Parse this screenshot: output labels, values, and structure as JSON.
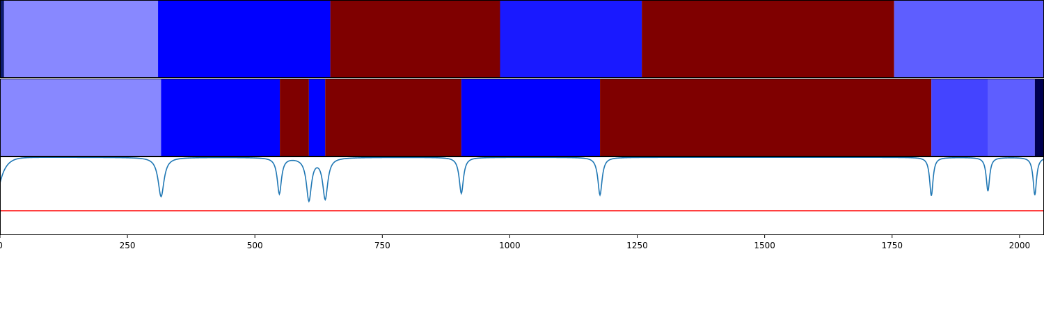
{
  "chart_data": {
    "type": "segmentation-timeline",
    "xlim": [
      0,
      2048
    ],
    "x_ticks": [
      0,
      250,
      500,
      750,
      1000,
      1250,
      1500,
      1750,
      2000
    ],
    "x_tick_labels": [
      "0",
      "250",
      "500",
      "750",
      "1000",
      "1250",
      "1500",
      "1750",
      "2000"
    ],
    "colors": {
      "navy": "#0d1a6e",
      "light_blue": "#8888ff",
      "blue": "#0000ff",
      "dark_red": "#7f0000",
      "blue2": "#1919ff",
      "mid_blue": "#5e5eff",
      "indigo": "#4444ff",
      "darkest_navy": "#000050",
      "line": "#1f77b4",
      "threshold": "#ff0000"
    },
    "rows": [
      {
        "segments": [
          {
            "start": 0,
            "end": 8,
            "color": "navy"
          },
          {
            "start": 8,
            "end": 310,
            "color": "light_blue"
          },
          {
            "start": 310,
            "end": 648,
            "color": "blue"
          },
          {
            "start": 648,
            "end": 981,
            "color": "dark_red"
          },
          {
            "start": 981,
            "end": 1259,
            "color": "blue2"
          },
          {
            "start": 1259,
            "end": 1754,
            "color": "dark_red"
          },
          {
            "start": 1754,
            "end": 2048,
            "color": "mid_blue"
          }
        ]
      },
      {
        "segments": [
          {
            "start": 0,
            "end": 316,
            "color": "light_blue"
          },
          {
            "start": 316,
            "end": 549,
            "color": "blue"
          },
          {
            "start": 549,
            "end": 606,
            "color": "dark_red"
          },
          {
            "start": 606,
            "end": 638,
            "color": "blue"
          },
          {
            "start": 638,
            "end": 905,
            "color": "dark_red"
          },
          {
            "start": 905,
            "end": 1177,
            "color": "blue"
          },
          {
            "start": 1177,
            "end": 1827,
            "color": "dark_red"
          },
          {
            "start": 1827,
            "end": 1938,
            "color": "indigo"
          },
          {
            "start": 1938,
            "end": 2030,
            "color": "mid_blue"
          },
          {
            "start": 2030,
            "end": 2048,
            "color": "darkest_navy"
          }
        ]
      }
    ],
    "signal": {
      "ylim": [
        0,
        1
      ],
      "baseline": 0.99,
      "threshold": 0.31,
      "dips": [
        {
          "x": 316,
          "value": 0.49,
          "width": 7
        },
        {
          "x": 548,
          "value": 0.53,
          "width": 5
        },
        {
          "x": 606,
          "value": 0.45,
          "width": 6
        },
        {
          "x": 638,
          "value": 0.47,
          "width": 6
        },
        {
          "x": 905,
          "value": 0.53,
          "width": 5
        },
        {
          "x": 1177,
          "value": 0.51,
          "width": 5
        },
        {
          "x": 1827,
          "value": 0.5,
          "width": 4
        },
        {
          "x": 1938,
          "value": 0.56,
          "width": 4
        },
        {
          "x": 2030,
          "value": 0.51,
          "width": 4
        }
      ],
      "start_value": 0.66
    }
  }
}
